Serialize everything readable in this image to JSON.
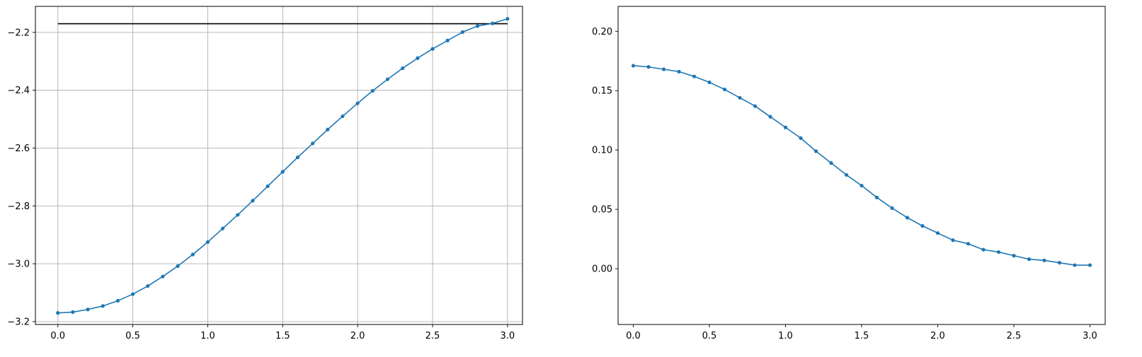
{
  "chart_data": [
    {
      "type": "line",
      "title": "",
      "xlabel": "",
      "ylabel": "",
      "xlim": [
        -0.15,
        3.1
      ],
      "ylim": [
        -3.21,
        -2.11
      ],
      "grid": true,
      "x_ticks": [
        0.0,
        0.5,
        1.0,
        1.5,
        2.0,
        2.5,
        3.0
      ],
      "x_tick_labels": [
        "0.0",
        "0.5",
        "1.0",
        "1.5",
        "2.0",
        "2.5",
        "3.0"
      ],
      "y_ticks": [
        -3.2,
        -3.0,
        -2.8,
        -2.6,
        -2.4,
        -2.2
      ],
      "y_tick_labels": [
        "−3.2",
        "−3.0",
        "−2.8",
        "−2.6",
        "−2.4",
        "−2.2"
      ],
      "x": [
        0.0,
        0.1,
        0.2,
        0.3,
        0.4,
        0.5,
        0.6,
        0.7,
        0.8,
        0.9,
        1.0,
        1.1,
        1.2,
        1.3,
        1.4,
        1.5,
        1.6,
        1.7,
        1.8,
        1.9,
        2.0,
        2.1,
        2.2,
        2.3,
        2.4,
        2.5,
        2.6,
        2.7,
        2.8,
        2.9,
        3.0
      ],
      "series": [
        {
          "color": "#1f77b4",
          "marker": "dot",
          "values": [
            -3.17,
            -3.167,
            -3.158,
            -3.146,
            -3.128,
            -3.105,
            -3.077,
            -3.044,
            -3.008,
            -2.968,
            -2.925,
            -2.878,
            -2.831,
            -2.782,
            -2.732,
            -2.682,
            -2.632,
            -2.584,
            -2.536,
            -2.49,
            -2.445,
            -2.402,
            -2.362,
            -2.324,
            -2.289,
            -2.257,
            -2.228,
            -2.199,
            -2.178,
            -2.169,
            -2.153
          ]
        }
      ],
      "reference_line": {
        "y": -2.17,
        "x_range": [
          0.0,
          3.0
        ],
        "color": "#000000"
      }
    },
    {
      "type": "line",
      "title": "",
      "xlabel": "",
      "ylabel": "",
      "xlim": [
        -0.1,
        3.1
      ],
      "ylim": [
        -0.047,
        0.221
      ],
      "grid": false,
      "x_ticks": [
        0.0,
        0.5,
        1.0,
        1.5,
        2.0,
        2.5,
        3.0
      ],
      "x_tick_labels": [
        "0.0",
        "0.5",
        "1.0",
        "1.5",
        "2.0",
        "2.5",
        "3.0"
      ],
      "y_ticks": [
        0.0,
        0.05,
        0.1,
        0.15,
        0.2
      ],
      "y_tick_labels": [
        "0.00",
        "0.05",
        "0.10",
        "0.15",
        "0.20"
      ],
      "x": [
        0.0,
        0.1,
        0.2,
        0.3,
        0.4,
        0.5,
        0.6,
        0.7,
        0.8,
        0.9,
        1.0,
        1.1,
        1.2,
        1.3,
        1.4,
        1.5,
        1.6,
        1.7,
        1.8,
        1.9,
        2.0,
        2.1,
        2.2,
        2.3,
        2.4,
        2.5,
        2.6,
        2.7,
        2.8,
        2.9,
        3.0
      ],
      "series": [
        {
          "color": "#1f77b4",
          "marker": "dot",
          "values": [
            0.171,
            0.17,
            0.168,
            0.166,
            0.162,
            0.157,
            0.151,
            0.144,
            0.137,
            0.128,
            0.119,
            0.11,
            0.099,
            0.089,
            0.079,
            0.07,
            0.06,
            0.051,
            0.043,
            0.036,
            0.03,
            0.024,
            0.021,
            0.016,
            0.014,
            0.011,
            0.008,
            0.007,
            0.005,
            0.003,
            0.003
          ]
        }
      ]
    }
  ]
}
